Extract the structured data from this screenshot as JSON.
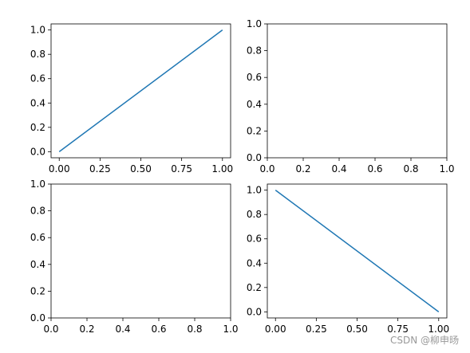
{
  "chart_data": [
    {
      "type": "line",
      "x": [
        0,
        1
      ],
      "series": [
        {
          "color": "#1f77b4",
          "values": [
            0,
            1
          ]
        }
      ],
      "xlim": [
        -0.05,
        1.05
      ],
      "ylim": [
        -0.05,
        1.05
      ],
      "xticks": [
        {
          "value": 0,
          "label": "0.00"
        },
        {
          "value": 0.25,
          "label": "0.25"
        },
        {
          "value": 0.5,
          "label": "0.50"
        },
        {
          "value": 0.75,
          "label": "0.75"
        },
        {
          "value": 1,
          "label": "1.00"
        }
      ],
      "yticks": [
        {
          "value": 0,
          "label": "0.0"
        },
        0.2,
        0.4,
        0.6,
        0.8,
        {
          "value": 1,
          "label": "1.0"
        }
      ]
    },
    {
      "type": "empty",
      "xlim": [
        0,
        1
      ],
      "ylim": [
        0,
        1
      ],
      "xticks": [
        {
          "value": 0,
          "label": "0.0"
        },
        0.2,
        0.4,
        0.6,
        0.8,
        {
          "value": 1,
          "label": "1.0"
        }
      ],
      "yticks": [
        {
          "value": 0,
          "label": "0.0"
        },
        0.2,
        0.4,
        0.6,
        0.8,
        {
          "value": 1,
          "label": "1.0"
        }
      ]
    },
    {
      "type": "empty",
      "xlim": [
        0,
        1
      ],
      "ylim": [
        0,
        1
      ],
      "xticks": [
        {
          "value": 0,
          "label": "0.0"
        },
        0.2,
        0.4,
        0.6,
        0.8,
        {
          "value": 1,
          "label": "1.0"
        }
      ],
      "yticks": [
        {
          "value": 0,
          "label": "0.0"
        },
        0.2,
        0.4,
        0.6,
        0.8,
        {
          "value": 1,
          "label": "1.0"
        }
      ]
    },
    {
      "type": "line",
      "x": [
        0,
        1
      ],
      "series": [
        {
          "color": "#1f77b4",
          "values": [
            1,
            0
          ]
        }
      ],
      "xlim": [
        -0.05,
        1.05
      ],
      "ylim": [
        -0.05,
        1.05
      ],
      "xticks": [
        {
          "value": 0,
          "label": "0.00"
        },
        {
          "value": 0.25,
          "label": "0.25"
        },
        {
          "value": 0.5,
          "label": "0.50"
        },
        {
          "value": 0.75,
          "label": "0.75"
        },
        {
          "value": 1,
          "label": "1.00"
        }
      ],
      "yticks": [
        {
          "value": 0,
          "label": "0.0"
        },
        0.2,
        0.4,
        0.6,
        0.8,
        {
          "value": 1,
          "label": "1.0"
        }
      ]
    }
  ],
  "watermark": "CSDN @柳申旸"
}
